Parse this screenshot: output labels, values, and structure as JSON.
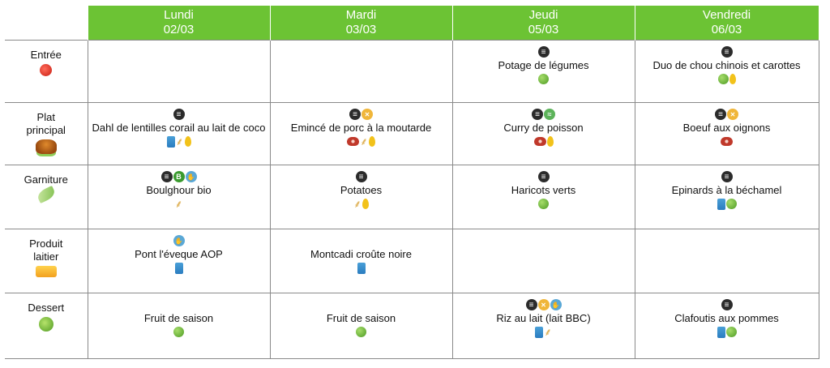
{
  "days": [
    {
      "name": "Lundi",
      "date": "02/03"
    },
    {
      "name": "Mardi",
      "date": "03/03"
    },
    {
      "name": "Jeudi",
      "date": "05/03"
    },
    {
      "name": "Vendredi",
      "date": "06/03"
    }
  ],
  "rows": [
    {
      "label_lines": [
        "Entrée"
      ],
      "icon": "tomato-icon"
    },
    {
      "label_lines": [
        "Plat",
        "principal"
      ],
      "icon": "roast-chicken-icon"
    },
    {
      "label_lines": [
        "Garniture"
      ],
      "icon": "peapod-icon"
    },
    {
      "label_lines": [
        "Produit",
        "laitier"
      ],
      "icon": "cheese-icon"
    },
    {
      "label_lines": [
        "Dessert"
      ],
      "icon": "apple-icon"
    }
  ],
  "cells": {
    "entree": [
      {
        "badges": [],
        "dish": "",
        "tags": []
      },
      {
        "badges": [],
        "dish": "",
        "tags": []
      },
      {
        "badges": [
          "halal-icon"
        ],
        "dish": "Potage de légumes",
        "tags": [
          "vegetable-icon"
        ]
      },
      {
        "badges": [
          "halal-icon"
        ],
        "dish": "Duo de chou chinois et carottes",
        "tags": [
          "vegetable-icon",
          "egg-icon"
        ]
      }
    ],
    "plat": [
      {
        "badges": [
          "halal-icon"
        ],
        "dish": "Dahl de lentilles corail au lait de coco",
        "tags": [
          "milk-icon",
          "gluten-icon",
          "egg-icon"
        ]
      },
      {
        "badges": [
          "halal-icon",
          "no-pork-icon"
        ],
        "dish": "Emincé de porc à la moutarde",
        "tags": [
          "meat-icon",
          "gluten-icon",
          "egg-icon"
        ]
      },
      {
        "badges": [
          "halal-icon",
          "msc-fish-icon"
        ],
        "dish": "Curry de poisson",
        "tags": [
          "meat-icon",
          "egg-icon"
        ]
      },
      {
        "badges": [
          "halal-icon",
          "no-pork-icon"
        ],
        "dish": "Boeuf aux oignons",
        "tags": [
          "meat-icon"
        ]
      }
    ],
    "garniture": [
      {
        "badges": [
          "halal-icon",
          "bio-icon",
          "local-icon"
        ],
        "dish": "Boulghour bio",
        "tags": [
          "gluten-icon"
        ]
      },
      {
        "badges": [
          "halal-icon"
        ],
        "dish": "Potatoes",
        "tags": [
          "gluten-icon",
          "egg-icon"
        ]
      },
      {
        "badges": [
          "halal-icon"
        ],
        "dish": "Haricots verts",
        "tags": [
          "vegetable-icon"
        ]
      },
      {
        "badges": [
          "halal-icon"
        ],
        "dish": "Epinards à la béchamel",
        "tags": [
          "milk-icon",
          "vegetable-icon"
        ]
      }
    ],
    "laitier": [
      {
        "badges": [
          "local-icon"
        ],
        "dish": "Pont l'éveque AOP",
        "tags": [
          "milk-icon"
        ]
      },
      {
        "badges": [],
        "dish": "Montcadi croûte noire",
        "tags": [
          "milk-icon"
        ]
      },
      {
        "badges": [],
        "dish": "",
        "tags": []
      },
      {
        "badges": [],
        "dish": "",
        "tags": []
      }
    ],
    "dessert": [
      {
        "badges": [],
        "dish": "Fruit de saison",
        "tags": [
          "vegetable-icon"
        ]
      },
      {
        "badges": [],
        "dish": "Fruit de saison",
        "tags": [
          "vegetable-icon"
        ]
      },
      {
        "badges": [
          "halal-icon",
          "no-pork-icon",
          "local-icon"
        ],
        "dish": "Riz au lait (lait BBC)",
        "tags": [
          "milk-icon",
          "gluten-icon"
        ]
      },
      {
        "badges": [
          "halal-icon"
        ],
        "dish": "Clafoutis aux pommes",
        "tags": [
          "milk-icon",
          "vegetable-icon"
        ]
      }
    ]
  }
}
